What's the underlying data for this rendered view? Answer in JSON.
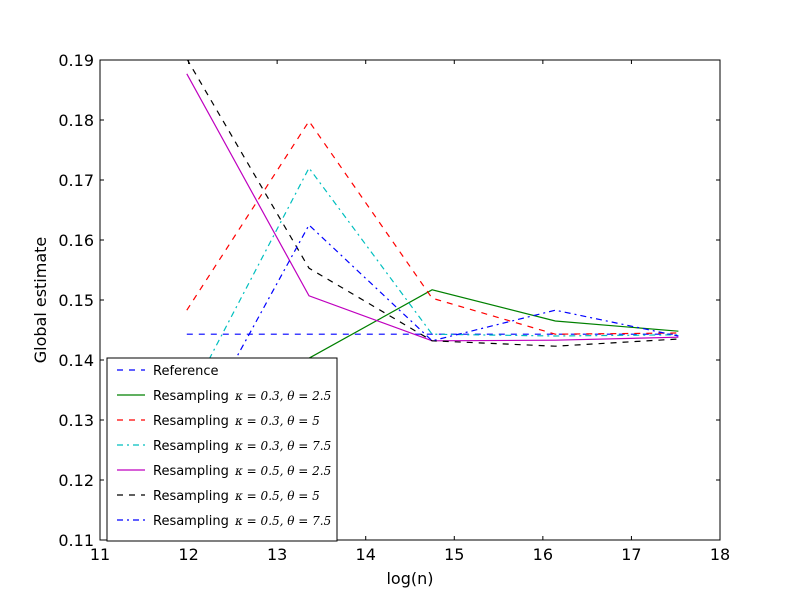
{
  "chart_data": {
    "type": "line",
    "title": "",
    "xlabel": "log(n)",
    "ylabel": "Global estimate",
    "xlim": [
      11,
      18
    ],
    "ylim": [
      0.11,
      0.19
    ],
    "xticks": [
      11,
      12,
      13,
      14,
      15,
      16,
      17,
      18
    ],
    "yticks": [
      0.11,
      0.12,
      0.13,
      0.14,
      0.15,
      0.16,
      0.17,
      0.18,
      0.19
    ],
    "xtick_labels": [
      "11",
      "12",
      "13",
      "14",
      "15",
      "16",
      "17",
      "18"
    ],
    "ytick_labels": [
      "0.11",
      "0.12",
      "0.13",
      "0.14",
      "0.15",
      "0.16",
      "0.17",
      "0.18",
      "0.19"
    ],
    "grid": false,
    "legend_position": "lower-left",
    "x": [
      11.98,
      13.36,
      14.75,
      16.14,
      17.53
    ],
    "series": [
      {
        "name": "Reference",
        "color": "#0000ff",
        "dash": "dashed",
        "values": [
          0.1443,
          0.1443,
          0.1443,
          0.1443,
          0.1443
        ]
      },
      {
        "name": "Resampling κ=0.3, θ=2.5",
        "color": "#008000",
        "dash": "solid",
        "values": [
          0.1283,
          0.1403,
          0.1517,
          0.1465,
          0.1448
        ]
      },
      {
        "name": "Resampling κ=0.3, θ=5",
        "color": "#ff0000",
        "dash": "dashed",
        "values": [
          0.1483,
          0.1798,
          0.1503,
          0.1443,
          0.1445
        ]
      },
      {
        "name": "Resampling κ=0.3, θ=7.5",
        "color": "#00bfbf",
        "dash": "dashdot",
        "values": [
          0.133,
          0.172,
          0.1443,
          0.144,
          0.1442
        ]
      },
      {
        "name": "Resampling κ=0.5, θ=2.5",
        "color": "#bf00bf",
        "dash": "solid",
        "values": [
          0.1877,
          0.1507,
          0.1432,
          0.1433,
          0.1438
        ]
      },
      {
        "name": "Resampling κ=0.5, θ=5",
        "color": "#000000",
        "dash": "dashed",
        "values": [
          0.1902,
          0.1553,
          0.1432,
          0.1423,
          0.1435
        ]
      },
      {
        "name": "Resampling κ=0.5, θ=7.5",
        "color": "#0000ff",
        "dash": "dashdot",
        "values": [
          0.1253,
          0.1625,
          0.1432,
          0.1483,
          0.144
        ]
      }
    ],
    "legend": [
      {
        "label": "Reference",
        "formula": ""
      },
      {
        "label": "Resampling",
        "formula": "κ = 0.3, θ = 2.5"
      },
      {
        "label": "Resampling",
        "formula": "κ = 0.3, θ = 5"
      },
      {
        "label": "Resampling",
        "formula": "κ = 0.3, θ = 7.5"
      },
      {
        "label": "Resampling",
        "formula": "κ = 0.5, θ = 2.5"
      },
      {
        "label": "Resampling",
        "formula": "κ = 0.5, θ = 5"
      },
      {
        "label": "Resampling",
        "formula": "κ = 0.5, θ = 7.5"
      }
    ]
  }
}
